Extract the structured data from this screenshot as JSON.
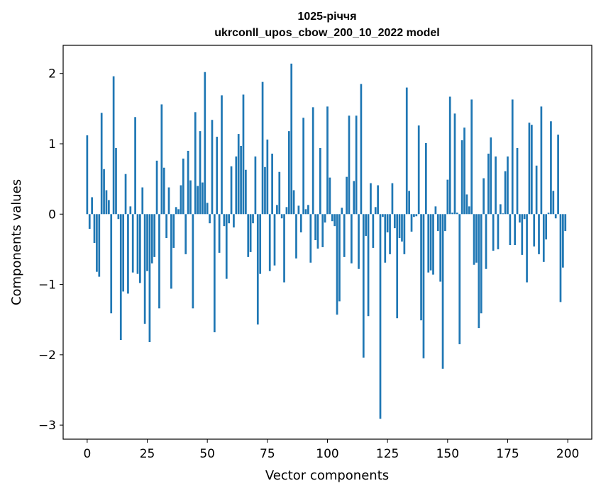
{
  "chart_data": {
    "type": "bar",
    "title_line1": "1025-річчя",
    "title_line2": "ukrconll_upos_cbow_200_10_2022 model",
    "xlabel": "Vector components",
    "ylabel": "Components values",
    "xlim": [
      -10,
      210
    ],
    "ylim": [
      -3.2,
      2.4
    ],
    "xticks": [
      0,
      25,
      50,
      75,
      100,
      125,
      150,
      175,
      200
    ],
    "xtick_labels": [
      "0",
      "25",
      "50",
      "75",
      "100",
      "125",
      "150",
      "175",
      "200"
    ],
    "yticks": [
      2,
      1,
      0,
      -1,
      -2,
      -3
    ],
    "ytick_labels": [
      "2",
      "1",
      "0",
      "−1",
      "−2",
      "−3"
    ],
    "grid": false,
    "bar_color": "#1f77b4",
    "values": [
      1.12,
      -0.21,
      0.24,
      -0.41,
      -0.82,
      -0.89,
      1.44,
      0.64,
      0.34,
      0.2,
      -1.41,
      1.96,
      0.94,
      -0.07,
      -1.79,
      -1.1,
      0.57,
      -1.13,
      0.11,
      -0.83,
      1.38,
      -0.85,
      -0.98,
      0.38,
      -1.56,
      -0.81,
      -1.82,
      -0.7,
      -0.61,
      0.76,
      -1.34,
      1.56,
      0.66,
      -0.34,
      0.38,
      -1.06,
      -0.48,
      0.1,
      0.07,
      0.41,
      0.79,
      -0.57,
      0.9,
      0.48,
      -1.34,
      1.45,
      0.4,
      1.18,
      0.45,
      2.02,
      0.16,
      -0.13,
      1.34,
      -1.68,
      1.1,
      -0.55,
      1.69,
      -0.17,
      -0.92,
      -0.13,
      0.68,
      -0.19,
      0.82,
      1.14,
      0.97,
      1.7,
      0.63,
      -0.61,
      -0.54,
      -0.13,
      0.82,
      -1.57,
      -0.85,
      1.88,
      0.67,
      1.06,
      -0.81,
      0.86,
      -0.73,
      0.13,
      0.6,
      -0.06,
      -0.97,
      0.1,
      1.18,
      2.14,
      0.34,
      -0.63,
      0.12,
      -0.26,
      1.37,
      0.07,
      0.13,
      -0.69,
      1.52,
      -0.37,
      -0.49,
      0.94,
      -0.47,
      -0.12,
      1.53,
      0.52,
      -0.1,
      -0.17,
      -1.43,
      -1.24,
      0.09,
      -0.61,
      0.53,
      1.4,
      -0.7,
      0.47,
      1.4,
      -0.78,
      1.85,
      -2.04,
      -0.31,
      -1.45,
      0.44,
      -0.48,
      0.1,
      0.41,
      -2.91,
      -0.04,
      -0.69,
      -0.26,
      -0.57,
      0.44,
      -0.2,
      -1.48,
      -0.34,
      -0.39,
      -0.57,
      1.8,
      0.33,
      -0.25,
      -0.04,
      -0.03,
      1.26,
      -1.51,
      -2.05,
      1.01,
      -0.83,
      -0.8,
      -0.86,
      0.11,
      -0.24,
      -0.96,
      -2.2,
      -0.24,
      0.49,
      1.67,
      0.02,
      1.43,
      0.02,
      -1.85,
      1.05,
      1.23,
      0.28,
      0.11,
      1.63,
      -0.72,
      -0.69,
      -1.62,
      -1.41,
      0.51,
      -0.78,
      0.86,
      1.09,
      -0.52,
      0.82,
      -0.5,
      0.14,
      0.01,
      0.61,
      0.82,
      -0.44,
      1.63,
      -0.44,
      0.94,
      -0.12,
      -0.58,
      -0.07,
      -0.97,
      1.3,
      1.27,
      -0.46,
      0.69,
      -0.57,
      1.53,
      -0.68,
      -0.36,
      0.02,
      1.32,
      0.33,
      -0.06,
      1.13,
      -1.25,
      -0.76,
      -0.24
    ]
  }
}
